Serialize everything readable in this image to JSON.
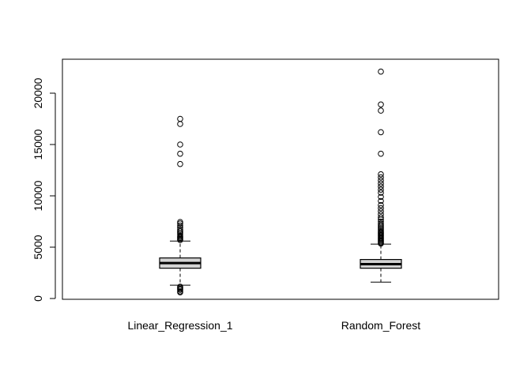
{
  "chart_data": {
    "type": "boxplot",
    "title": "",
    "xlabel": "",
    "ylabel": "",
    "ylim": [
      0,
      22500
    ],
    "yticks": [
      0,
      5000,
      10000,
      15000,
      20000
    ],
    "categories": [
      "Linear_Regression_1",
      "Random_Forest"
    ],
    "series": [
      {
        "label": "Linear_Regression_1",
        "whisker_low": 1300,
        "q1": 2950,
        "median": 3450,
        "q3": 3950,
        "whisker_high": 5600,
        "outliers_low": [
          1150,
          1050,
          950,
          850,
          700,
          600
        ],
        "outliers_high": [
          5700,
          5800,
          5900,
          6000,
          6100,
          6250,
          6400,
          6550,
          6700,
          6900,
          7100,
          7300,
          7450,
          13100,
          14100,
          15000,
          17000,
          17500
        ]
      },
      {
        "label": "Random_Forest",
        "whisker_low": 1600,
        "q1": 2950,
        "median": 3350,
        "q3": 3800,
        "whisker_high": 5300,
        "outliers_high": [
          5350,
          5450,
          5550,
          5650,
          5750,
          5850,
          5950,
          6050,
          6150,
          6250,
          6350,
          6450,
          6550,
          6700,
          6850,
          7000,
          7150,
          7300,
          7500,
          7700,
          7900,
          8200,
          8500,
          8800,
          9100,
          9500,
          9900,
          10300,
          10600,
          10900,
          11200,
          11500,
          11800,
          12100,
          14100,
          16200,
          18300,
          18900,
          22100
        ]
      }
    ]
  }
}
